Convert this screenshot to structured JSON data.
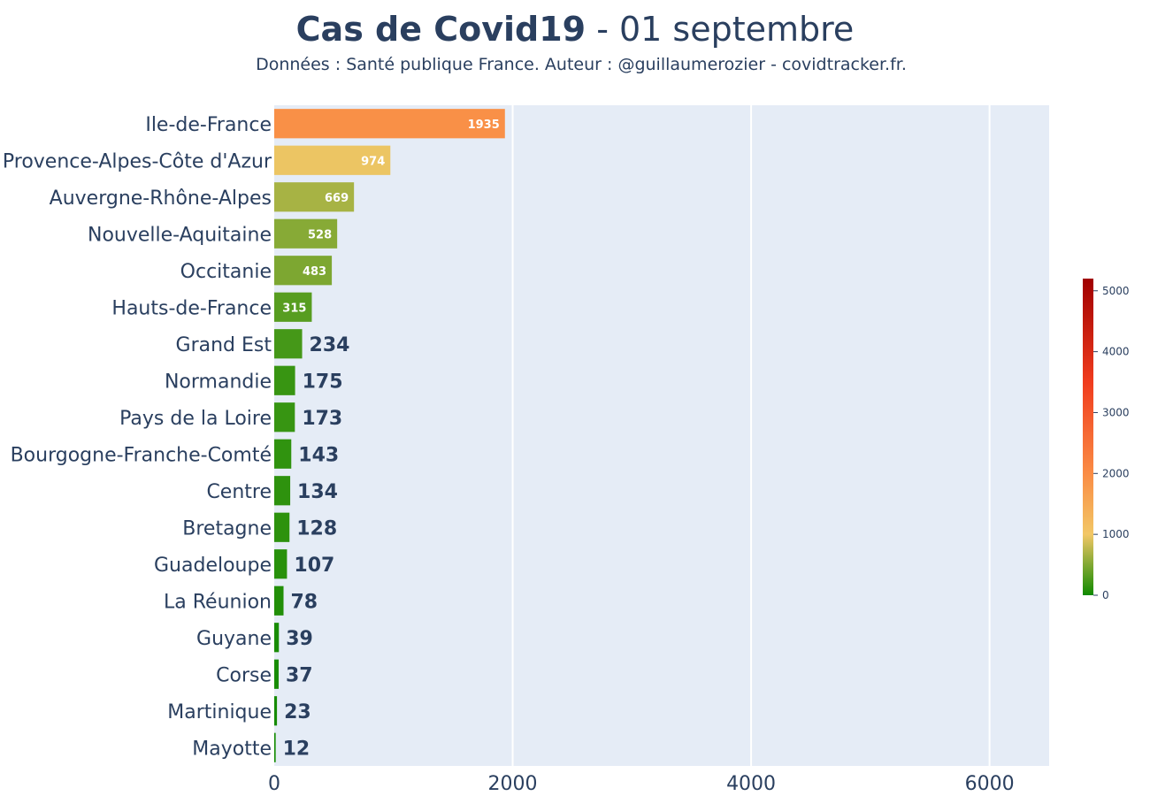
{
  "chart_data": {
    "type": "bar",
    "orientation": "horizontal",
    "title_bold": "Cas de Covid19",
    "title_rest": " - 01 septembre",
    "subtitle": "Données : Santé publique France. Auteur : @guillaumerozier - covidtracker.fr.",
    "categories": [
      "Ile-de-France",
      "Provence-Alpes-Côte d'Azur",
      "Auvergne-Rhône-Alpes",
      "Nouvelle-Aquitaine",
      "Occitanie",
      "Hauts-de-France",
      "Grand Est",
      "Normandie",
      "Pays de la Loire",
      "Bourgogne-Franche-Comté",
      "Centre",
      "Bretagne",
      "Guadeloupe",
      "La Réunion",
      "Guyane",
      "Corse",
      "Martinique",
      "Mayotte"
    ],
    "values": [
      1935,
      974,
      669,
      528,
      483,
      315,
      234,
      175,
      173,
      143,
      134,
      128,
      107,
      78,
      39,
      37,
      23,
      12
    ],
    "data_labels": [
      "1935",
      "974",
      "669",
      "528",
      "483",
      "315",
      "234",
      "175",
      "173",
      "143",
      "134",
      "128",
      "107",
      "78",
      "39",
      "37",
      "23",
      "12"
    ],
    "xlim": [
      0,
      6500
    ],
    "xticks": [
      0,
      2000,
      4000,
      6000
    ],
    "xtick_labels": [
      "0",
      "2000",
      "4000",
      "6000"
    ],
    "grid": true,
    "legend": "none",
    "colorscale": {
      "min": 0,
      "max": 5200,
      "ticks": [
        0,
        1000,
        2000,
        3000,
        4000,
        5000
      ],
      "tick_labels": [
        "0",
        "1000",
        "2000",
        "3000",
        "4000",
        "5000"
      ],
      "placement": "right",
      "stops": [
        {
          "value": 0,
          "color": "#108a00"
        },
        {
          "value": 1000,
          "color": "#f2c766"
        },
        {
          "value": 2000,
          "color": "#fa8c45"
        },
        {
          "value": 3500,
          "color": "#f03c1e"
        },
        {
          "value": 5200,
          "color": "#a00000"
        }
      ]
    },
    "colors": {
      "plot_background": "#e5ecf6",
      "gridline": "#ffffff",
      "text": "#2a3f5f",
      "label_inside": "#ffffff"
    }
  }
}
